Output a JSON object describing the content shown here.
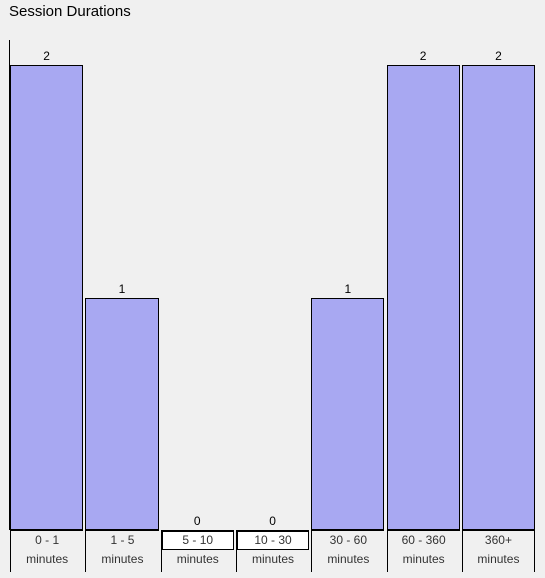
{
  "chart_data": {
    "type": "bar",
    "title": "Session Durations",
    "categories": [
      [
        "0 - 1",
        "minutes"
      ],
      [
        "1 - 5",
        "minutes"
      ],
      [
        "5 - 10",
        "minutes"
      ],
      [
        "10 - 30",
        "minutes"
      ],
      [
        "30 - 60",
        "minutes"
      ],
      [
        "60 - 360",
        "minutes"
      ],
      [
        "360+",
        "minutes"
      ]
    ],
    "values": [
      2,
      1,
      0,
      0,
      1,
      2,
      2
    ],
    "data_labels": [
      "2",
      "1",
      "0",
      "0",
      "1",
      "2",
      "2"
    ],
    "ylim": [
      0,
      2
    ],
    "grid": false,
    "bar_color": "#a8a8f2",
    "empty_category_box_color": "#ffffff"
  }
}
